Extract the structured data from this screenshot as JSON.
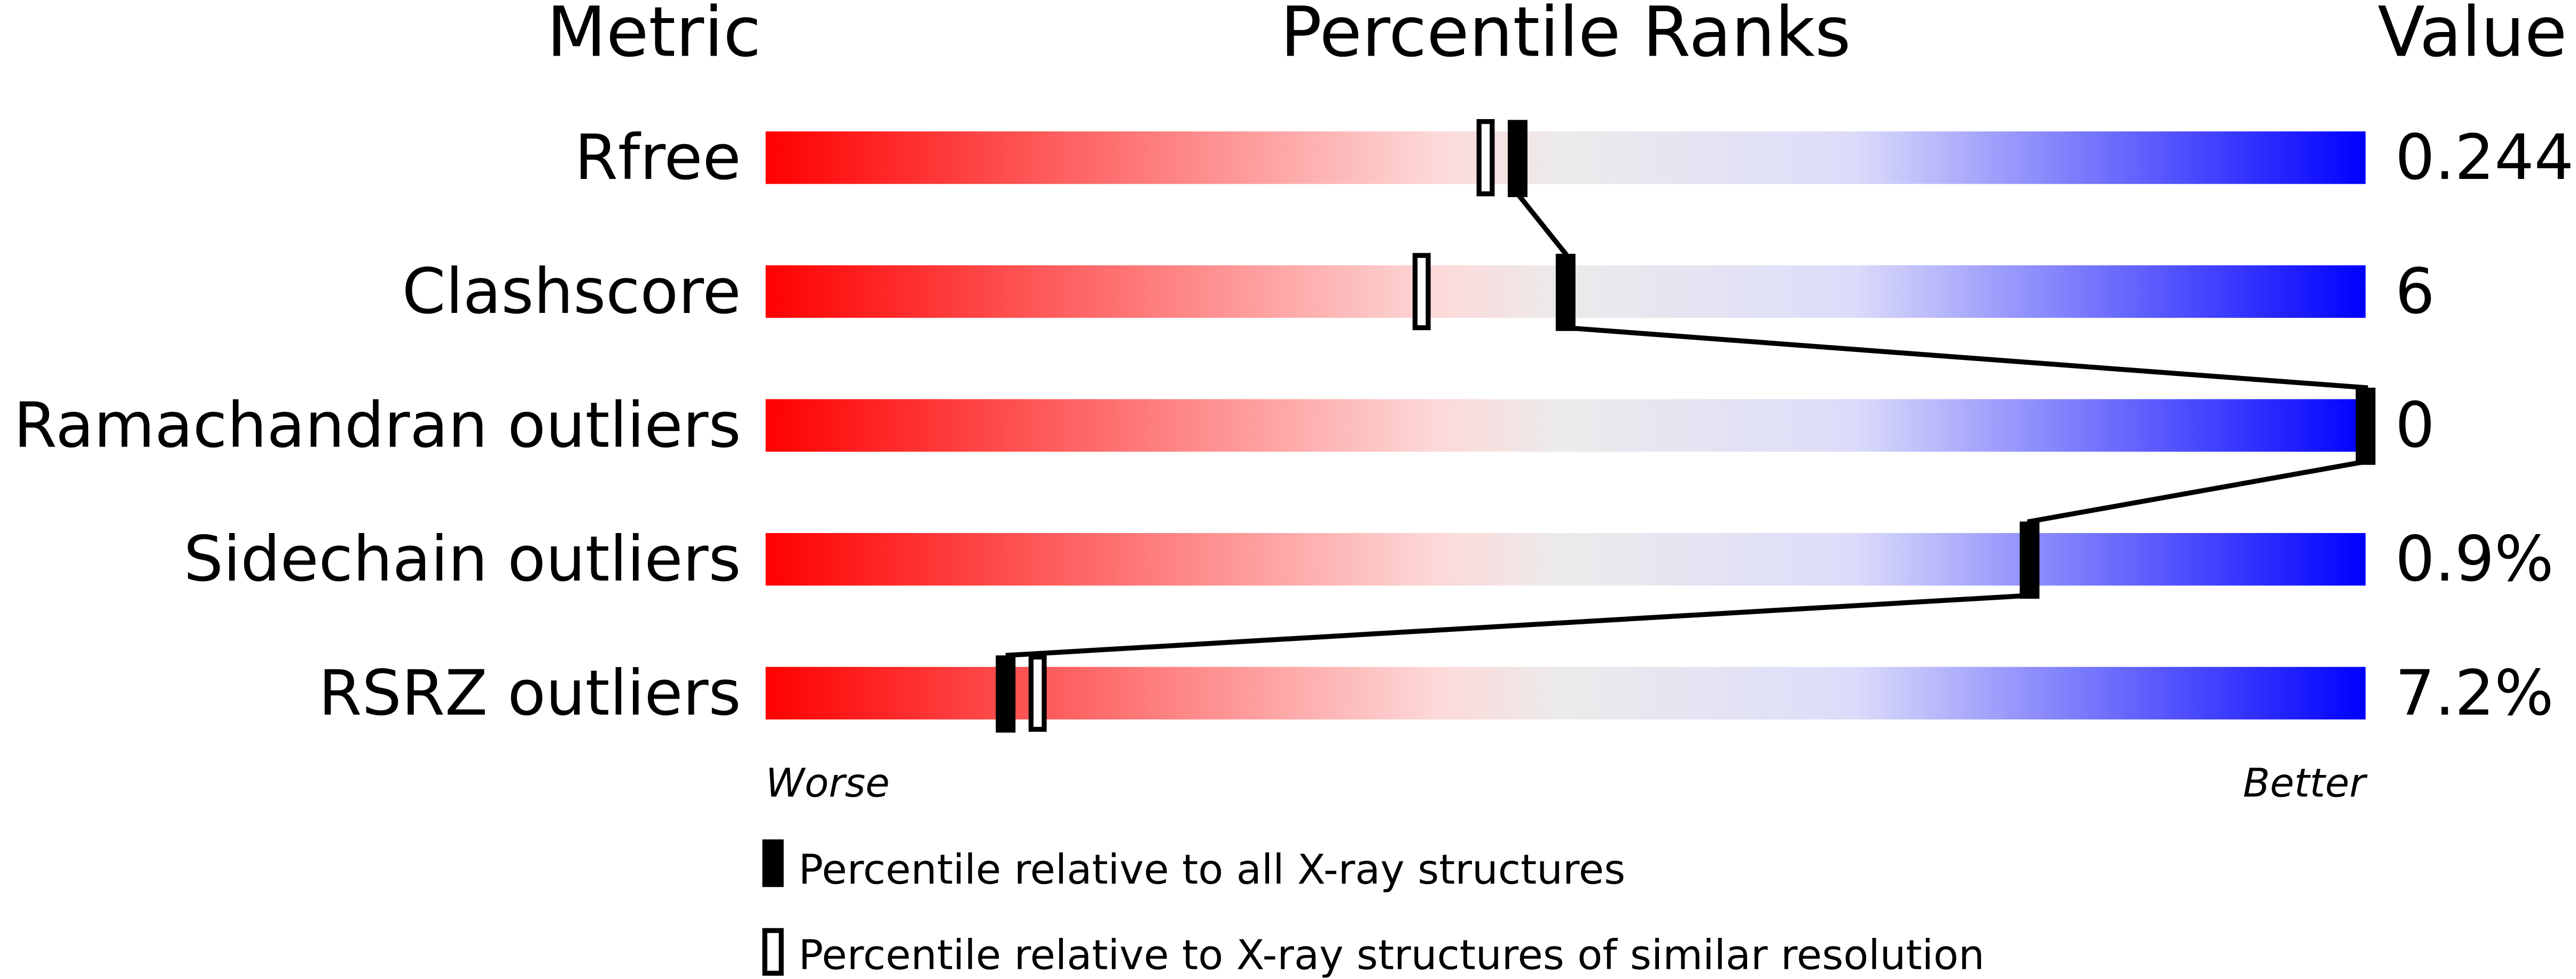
{
  "chart_data": {
    "type": "percentile-slider",
    "headers": {
      "metric": "Metric",
      "ranks": "Percentile Ranks",
      "value": "Value"
    },
    "xlim": [
      0,
      100
    ],
    "axis_labels": {
      "left": "Worse",
      "right": "Better"
    },
    "gradient_colors": [
      "#ff0000",
      "#fdeaea",
      "#ebebeb",
      "#dcdcfa",
      "#0000ff"
    ],
    "metrics": [
      {
        "name": "Rfree",
        "value": "0.244",
        "percentile_all": 47,
        "percentile_similar": 45
      },
      {
        "name": "Clashscore",
        "value": "6",
        "percentile_all": 50,
        "percentile_similar": 41
      },
      {
        "name": "Ramachandran outliers",
        "value": "0",
        "percentile_all": 100,
        "percentile_similar": null
      },
      {
        "name": "Sidechain outliers",
        "value": "0.9%",
        "percentile_all": 79,
        "percentile_similar": null
      },
      {
        "name": "RSRZ outliers",
        "value": "7.2%",
        "percentile_all": 15,
        "percentile_similar": 17
      }
    ],
    "legend": [
      {
        "marker": "filled",
        "label": "Percentile relative to all X-ray structures"
      },
      {
        "marker": "open",
        "label": "Percentile relative to X-ray structures of similar resolution"
      }
    ]
  }
}
